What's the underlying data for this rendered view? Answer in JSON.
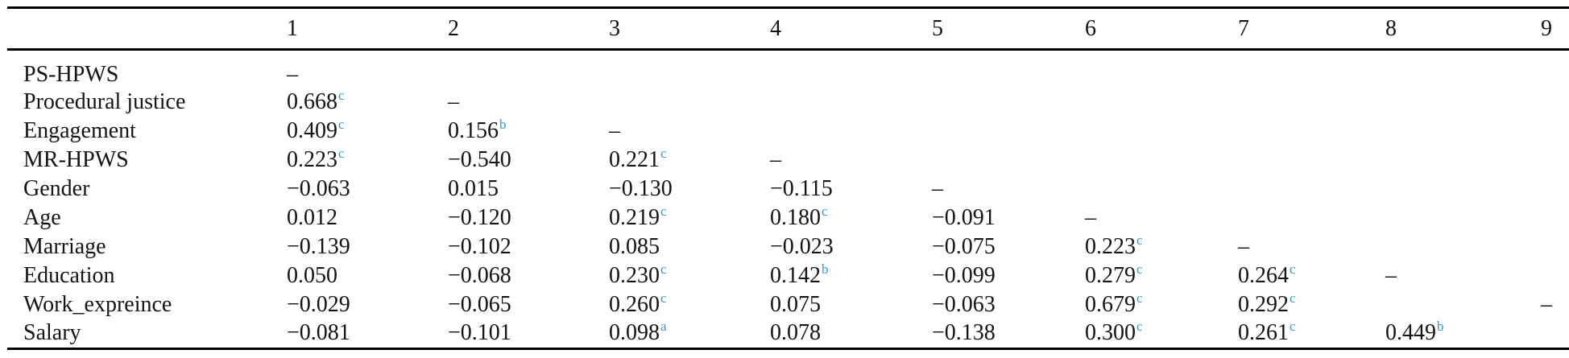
{
  "colors": {
    "superscript": "#2E9BD5",
    "text": "#141414",
    "rule": "#000000"
  },
  "table": {
    "corner_header": "",
    "columns": [
      "1",
      "2",
      "3",
      "4",
      "5",
      "6",
      "7",
      "8",
      "9"
    ],
    "rows": [
      {
        "label": "PS-HPWS",
        "cells": [
          {
            "v": "–"
          },
          null,
          null,
          null,
          null,
          null,
          null,
          null,
          null
        ]
      },
      {
        "label": "Procedural justice",
        "cells": [
          {
            "v": "0.668",
            "sup": "c"
          },
          {
            "v": "–"
          },
          null,
          null,
          null,
          null,
          null,
          null,
          null
        ]
      },
      {
        "label": "Engagement",
        "cells": [
          {
            "v": "0.409",
            "sup": "c"
          },
          {
            "v": "0.156",
            "sup": "b"
          },
          {
            "v": "–"
          },
          null,
          null,
          null,
          null,
          null,
          null
        ]
      },
      {
        "label": "MR-HPWS",
        "cells": [
          {
            "v": "0.223",
            "sup": "c"
          },
          {
            "v": "−0.540"
          },
          {
            "v": "0.221",
            "sup": "c"
          },
          {
            "v": "–"
          },
          null,
          null,
          null,
          null,
          null
        ]
      },
      {
        "label": "Gender",
        "cells": [
          {
            "v": "−0.063"
          },
          {
            "v": "0.015"
          },
          {
            "v": "−0.130"
          },
          {
            "v": "−0.115"
          },
          {
            "v": "–"
          },
          null,
          null,
          null,
          null
        ]
      },
      {
        "label": "Age",
        "cells": [
          {
            "v": "0.012"
          },
          {
            "v": "−0.120"
          },
          {
            "v": "0.219",
            "sup": "c"
          },
          {
            "v": "0.180",
            "sup": "c"
          },
          {
            "v": "−0.091"
          },
          {
            "v": "–"
          },
          null,
          null,
          null
        ]
      },
      {
        "label": "Marriage",
        "cells": [
          {
            "v": "−0.139"
          },
          {
            "v": "−0.102"
          },
          {
            "v": "0.085"
          },
          {
            "v": "−0.023"
          },
          {
            "v": "−0.075"
          },
          {
            "v": "0.223",
            "sup": "c"
          },
          {
            "v": "–"
          },
          null,
          null
        ]
      },
      {
        "label": "Education",
        "cells": [
          {
            "v": "0.050"
          },
          {
            "v": "−0.068"
          },
          {
            "v": "0.230",
            "sup": "c"
          },
          {
            "v": "0.142",
            "sup": "b"
          },
          {
            "v": "−0.099"
          },
          {
            "v": "0.279",
            "sup": "c"
          },
          {
            "v": "0.264",
            "sup": "c"
          },
          {
            "v": "–"
          },
          null
        ]
      },
      {
        "label": "Work_expreince",
        "cells": [
          {
            "v": "−0.029"
          },
          {
            "v": "−0.065"
          },
          {
            "v": "0.260",
            "sup": "c"
          },
          {
            "v": "0.075"
          },
          {
            "v": "−0.063"
          },
          {
            "v": "0.679",
            "sup": "c"
          },
          {
            "v": "0.292",
            "sup": "c"
          },
          null,
          {
            "v": "–"
          }
        ]
      },
      {
        "label": "Salary",
        "cells": [
          {
            "v": "−0.081"
          },
          {
            "v": "−0.101"
          },
          {
            "v": "0.098",
            "sup": "a"
          },
          {
            "v": "0.078"
          },
          {
            "v": "−0.138"
          },
          {
            "v": "0.300",
            "sup": "c"
          },
          {
            "v": "0.261",
            "sup": "c"
          },
          {
            "v": "0.449",
            "sup": "b"
          },
          null
        ]
      }
    ]
  }
}
